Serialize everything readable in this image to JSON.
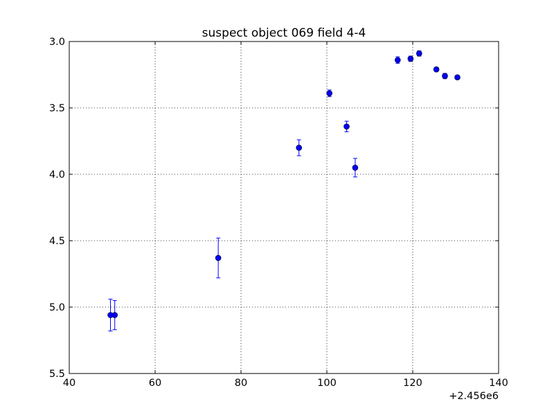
{
  "chart_data": {
    "type": "scatter",
    "title": "suspect object 069 field 4-4",
    "xlabel": "",
    "ylabel": "",
    "x_offset_label": "+2.456e6",
    "xlim": [
      40,
      140
    ],
    "ylim": [
      5.5,
      3.0
    ],
    "y_inverted": true,
    "grid": true,
    "x_ticks": [
      "40",
      "60",
      "80",
      "100",
      "120",
      "140"
    ],
    "y_ticks": [
      "3.0",
      "3.5",
      "4.0",
      "4.5",
      "5.0",
      "5.5"
    ],
    "marker_color": "#0000ff",
    "series": [
      {
        "points": [
          {
            "x": 49.6,
            "y": 5.06,
            "err": 0.12
          },
          {
            "x": 50.6,
            "y": 5.06,
            "err": 0.11
          },
          {
            "x": 74.7,
            "y": 4.63,
            "err": 0.15
          },
          {
            "x": 93.5,
            "y": 3.8,
            "err": 0.06
          },
          {
            "x": 100.6,
            "y": 3.39,
            "err": 0.025
          },
          {
            "x": 104.6,
            "y": 3.64,
            "err": 0.04
          },
          {
            "x": 106.6,
            "y": 3.95,
            "err": 0.07
          },
          {
            "x": 116.5,
            "y": 3.14,
            "err": 0.025
          },
          {
            "x": 119.5,
            "y": 3.13,
            "err": 0.02
          },
          {
            "x": 121.5,
            "y": 3.09,
            "err": 0.02
          },
          {
            "x": 125.5,
            "y": 3.21,
            "err": 0.015
          },
          {
            "x": 127.5,
            "y": 3.26,
            "err": 0.02
          },
          {
            "x": 130.4,
            "y": 3.27,
            "err": 0.015
          }
        ]
      }
    ]
  }
}
